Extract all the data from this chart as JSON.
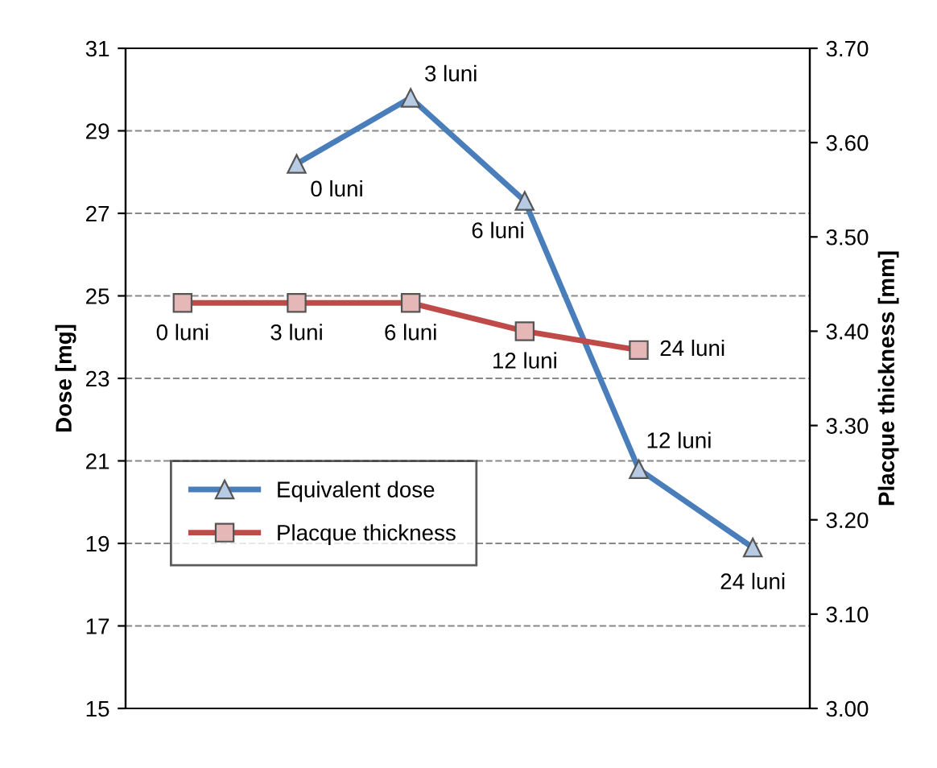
{
  "chart_data": {
    "type": "line",
    "categories": [
      null,
      null,
      null,
      null,
      null,
      null
    ],
    "series": [
      {
        "name": "Equivalent dose",
        "color": "#4a7ebb",
        "marker": "triangle",
        "values": [
          null,
          28.2,
          29.8,
          27.3,
          20.8,
          18.9
        ]
      },
      {
        "name": "Placque thickness",
        "color": "#be4b48",
        "marker": "square",
        "axis": "y2",
        "values": [
          3.43,
          3.43,
          3.43,
          3.4,
          3.38,
          null
        ]
      }
    ],
    "annotations": [
      "0 luni",
      "3 luni",
      "6 luni",
      "12 luni",
      "24 luni",
      "0 luni",
      "3 luni",
      "6 luni",
      "12 luni",
      "24 luni"
    ],
    "ylabel": "Dose [mg]",
    "y2label": "Placque thickness [mm]",
    "ylim": [
      15,
      31
    ],
    "yticks": [
      15,
      17,
      19,
      21,
      23,
      25,
      27,
      29,
      31
    ],
    "y2lim": [
      3.0,
      3.7
    ],
    "y2ticks": [
      {
        "value": 3.0,
        "label": "3.00"
      },
      {
        "value": 3.1,
        "label": "3.10"
      },
      {
        "value": 3.2,
        "label": "3.20"
      },
      {
        "value": 3.3,
        "label": "3.30"
      },
      {
        "value": 3.4,
        "label": "3.40"
      },
      {
        "value": 3.5,
        "label": "3.50"
      },
      {
        "value": 3.6,
        "label": "3.60"
      },
      {
        "value": 3.7,
        "label": "3.70"
      }
    ],
    "grid": "y",
    "legend": "bottom left",
    "tick_labels": "y"
  }
}
